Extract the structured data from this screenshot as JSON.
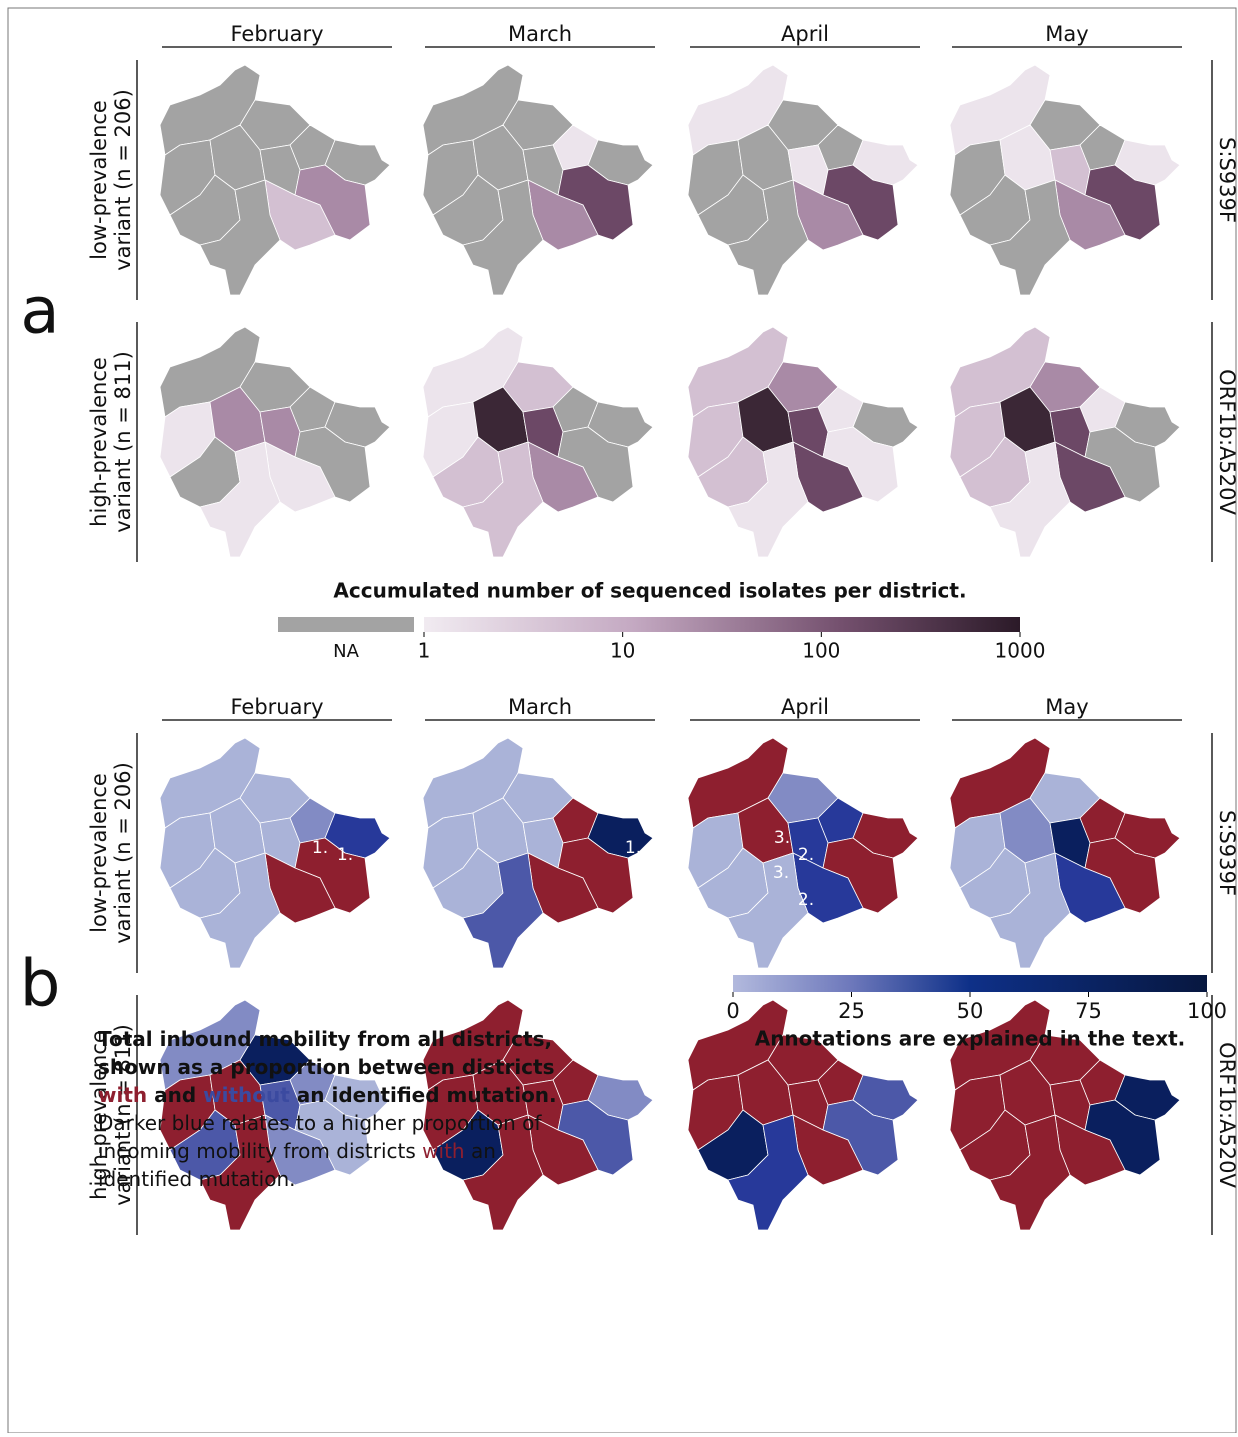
{
  "panel_a": {
    "label": "a",
    "months": [
      "February",
      "March",
      "April",
      "May"
    ],
    "rows": [
      {
        "label_lines": [
          "low-prevalence",
          "variant (n = 206)"
        ],
        "mutation": "S:S939F"
      },
      {
        "label_lines": [
          "high-prevalence",
          "variant (n = 811)"
        ],
        "mutation": "ORF1b:A520V"
      }
    ],
    "colorbar": {
      "title": "Accumulated number of sequenced isolates per district.",
      "na_label": "NA",
      "scale": "log",
      "lim": [
        1,
        1000
      ],
      "ticks": [
        1,
        10,
        100,
        1000
      ]
    }
  },
  "panel_b": {
    "label": "b",
    "months": [
      "February",
      "March",
      "April",
      "May"
    ],
    "rows": [
      {
        "label_lines": [
          "low-prevalence",
          "variant (n = 206)"
        ],
        "mutation": "S:S939F",
        "annotations": [
          [
            "1.",
            "1."
          ],
          [
            "1."
          ],
          [
            "3.",
            "2.",
            "3.",
            "2."
          ],
          []
        ]
      },
      {
        "label_lines": [
          "high-prevalence",
          "variant (n = 811)"
        ],
        "mutation": "ORF1b:A520V",
        "annotations": [
          [],
          [],
          [],
          []
        ]
      }
    ],
    "colorbar": {
      "lim": [
        0,
        100
      ],
      "ticks": [
        0,
        25,
        50,
        75,
        100
      ]
    },
    "legend": {
      "title_lines": [
        [
          "Total inbound mobility from all districts,"
        ],
        [
          "shown as a proportion between districts"
        ],
        [
          "with",
          " and ",
          "without",
          " an identified mutation."
        ]
      ],
      "body_lines": [
        [
          "Darker blue relates to a higher proportion of"
        ],
        [
          "incoming mobility from districts ",
          "with",
          " an"
        ],
        [
          "identified mutation."
        ]
      ],
      "note": "Annotations are explained in the text."
    }
  }
}
